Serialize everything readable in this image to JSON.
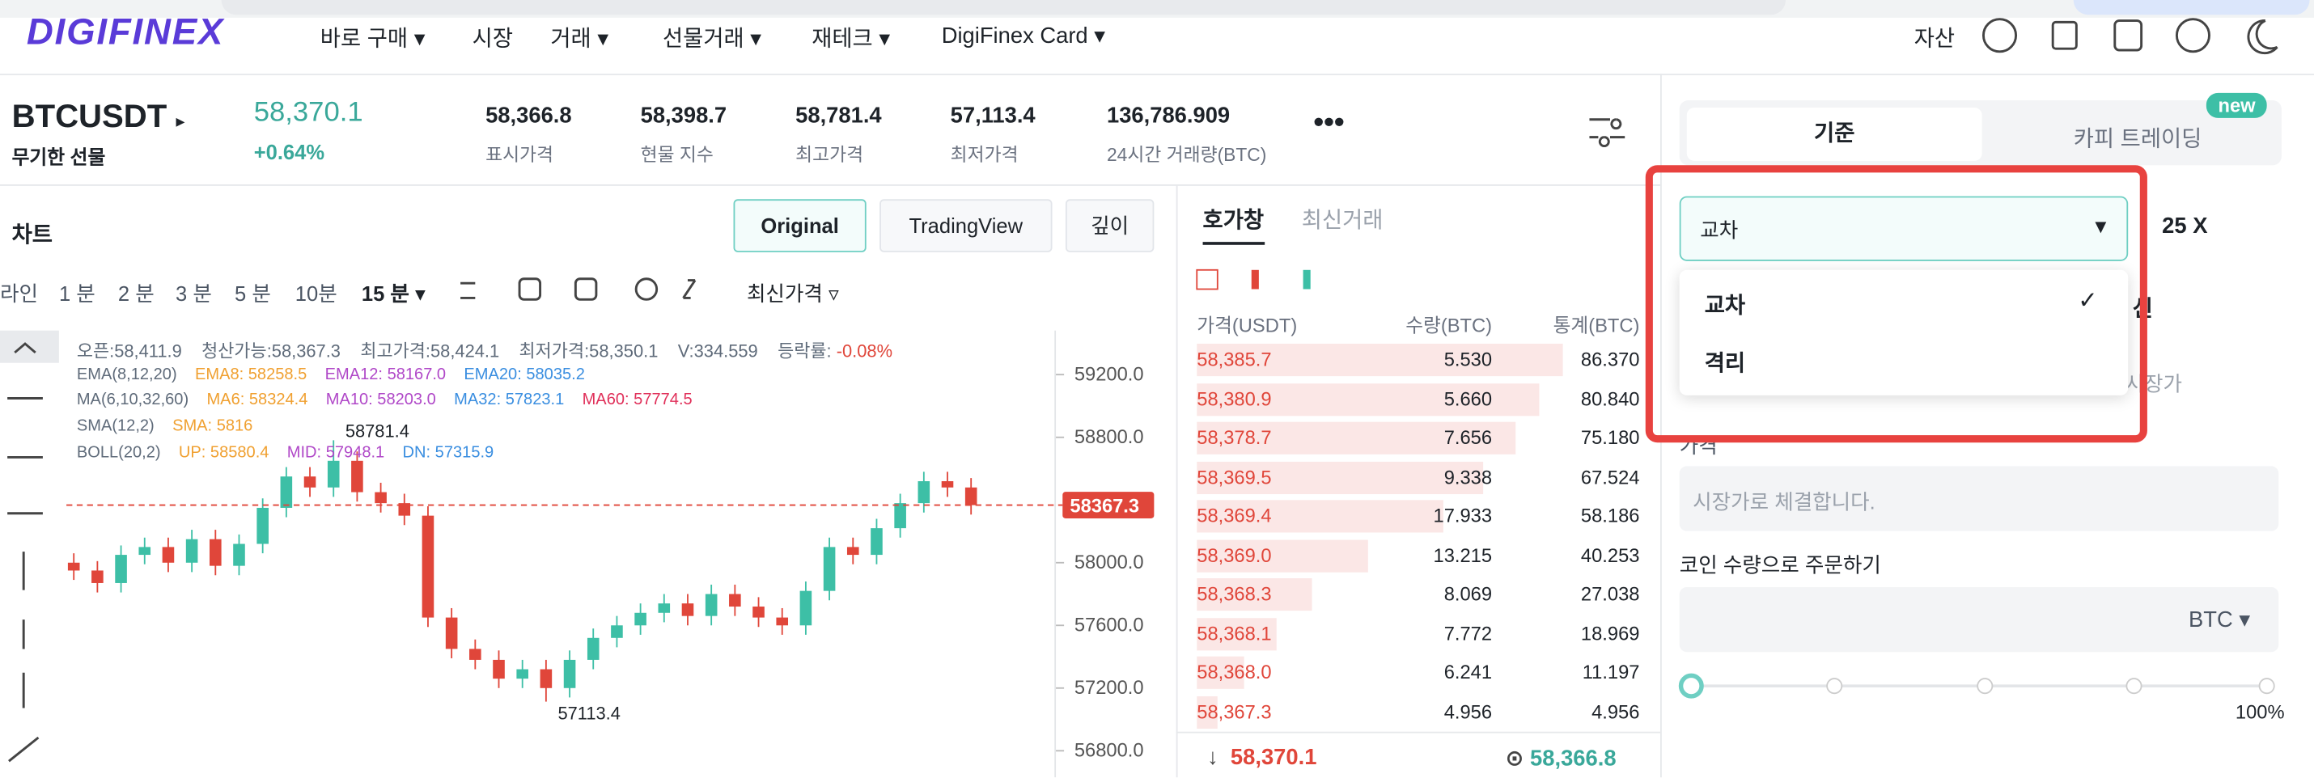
{
  "nav": {
    "logo": "DIGIFINEX",
    "menu": [
      "바로 구매",
      "시장",
      "거래",
      "선물거래",
      "재테크",
      "DigiFinex Card"
    ],
    "assets": "자산"
  },
  "ticker": {
    "symbol": "BTCUSDT",
    "contract": "무기한 선물",
    "price": "58,370.1",
    "change": "+0.64%",
    "stats": [
      {
        "value": "58,366.8",
        "label": "표시가격"
      },
      {
        "value": "58,398.7",
        "label": "현물 지수"
      },
      {
        "value": "58,781.4",
        "label": "최고가격"
      },
      {
        "value": "57,113.4",
        "label": "최저가격"
      },
      {
        "value": "136,786.909",
        "label": "24시간 거래량(BTC)"
      }
    ]
  },
  "chart_panel": {
    "title": "차트",
    "views": [
      "Original",
      "TradingView",
      "깊이"
    ],
    "intervals": [
      "라인",
      "1 분",
      "2 분",
      "3 분",
      "5 분",
      "10분",
      "15 분"
    ],
    "price_source": "최신가격",
    "info": [
      "오픈:58,411.9",
      "청산가능:58,367.3",
      "최고가격:58,424.1",
      "최저가격:58,350.1",
      "V:334.559",
      "등락률:",
      "-0.08%"
    ],
    "ema": [
      "EMA(8,12,20)",
      "EMA8: 58258.5",
      "EMA12: 58167.0",
      "EMA20: 58035.2"
    ],
    "ma": [
      "MA(6,10,32,60)",
      "MA6: 58324.4",
      "MA10: 58203.0",
      "MA32: 57823.1",
      "MA60: 57774.5"
    ],
    "sma": [
      "SMA(12,2)",
      "SMA: 5816"
    ],
    "boll": [
      "BOLL(20,2)",
      "UP: 58580.4",
      "MID: 57948.1",
      "DN: 57315.9"
    ]
  },
  "chart_data": {
    "type": "candlestick",
    "up_color": "#3dbfa6",
    "down_color": "#e0463a",
    "open": [
      58000,
      57950,
      57870,
      58050,
      58100,
      58000,
      58150,
      57980,
      58120,
      58350,
      58550,
      58480,
      58650,
      58450,
      58380,
      58300,
      57650,
      57450,
      57380,
      57260,
      57320,
      57200,
      57380,
      57520,
      57600,
      57680,
      57740,
      57660,
      57800,
      57720,
      57650,
      57600,
      57820,
      58100,
      58050,
      58220,
      58380,
      58520,
      58480
    ],
    "high": [
      58060,
      58010,
      58110,
      58160,
      58160,
      58210,
      58210,
      58180,
      58410,
      58610,
      58610,
      58781.4,
      58710,
      58510,
      58440,
      58360,
      57710,
      57510,
      57440,
      57380,
      57380,
      57440,
      57580,
      57660,
      57740,
      57800,
      57800,
      57860,
      57860,
      57780,
      57710,
      57880,
      58160,
      58160,
      58280,
      58440,
      58580,
      58580,
      58540
    ],
    "low": [
      57890,
      57810,
      57810,
      57990,
      57940,
      57940,
      57920,
      57920,
      58060,
      58290,
      58420,
      58420,
      58390,
      58320,
      58240,
      57590,
      57390,
      57320,
      57200,
      57200,
      57113.4,
      57140,
      57320,
      57460,
      57540,
      57620,
      57600,
      57600,
      57660,
      57590,
      57540,
      57540,
      57760,
      57990,
      57990,
      58160,
      58320,
      58420,
      58307
    ],
    "close": [
      57950,
      57870,
      58050,
      58100,
      58000,
      58150,
      57980,
      58120,
      58350,
      58550,
      58480,
      58650,
      58450,
      58380,
      58300,
      57650,
      57450,
      57380,
      57260,
      57320,
      57200,
      57380,
      57520,
      57600,
      57680,
      57740,
      57660,
      57800,
      57720,
      57650,
      57600,
      57820,
      58100,
      58050,
      58220,
      58380,
      58520,
      58480,
      58367.3
    ],
    "ylim": [
      56630,
      59482
    ],
    "yticks": [
      {
        "value": 56800,
        "label": "56800.0"
      },
      {
        "value": 57200,
        "label": "57200.0"
      },
      {
        "value": 57600,
        "label": "57600.0"
      },
      {
        "value": 58000,
        "label": "58000.0"
      },
      {
        "value": 58800,
        "label": "58800.0"
      },
      {
        "value": 59200,
        "label": "59200.0"
      }
    ],
    "high_mark": 58781.4,
    "low_mark": 57113.4,
    "last_price": 58367.3
  },
  "order_book": {
    "tabs": [
      "호가창",
      "최신거래"
    ],
    "headers": [
      "가격(USDT)",
      "수량(BTC)",
      "통계(BTC)"
    ],
    "rows": [
      [
        "58,385.7",
        "5.530",
        "86.370"
      ],
      [
        "58,380.9",
        "5.660",
        "80.840"
      ],
      [
        "58,378.7",
        "7.656",
        "75.180"
      ],
      [
        "58,369.5",
        "9.338",
        "67.524"
      ],
      [
        "58,369.4",
        "17.933",
        "58.186"
      ],
      [
        "58,369.0",
        "13.215",
        "40.253"
      ],
      [
        "58,368.3",
        "8.069",
        "27.038"
      ],
      [
        "58,368.1",
        "7.772",
        "18.969"
      ],
      [
        "58,368.0",
        "6.241",
        "11.197"
      ],
      [
        "58,367.3",
        "4.956",
        "4.956"
      ]
    ],
    "last": "58,370.1",
    "mark": "58,366.8"
  },
  "trade_panel": {
    "tabs": [
      "기준",
      "카피 트레이딩"
    ],
    "badge": "new",
    "margin_mode": "교차",
    "leverage": "25 X",
    "options": [
      "교차",
      "격리"
    ],
    "covered": [
      "신",
      "시장가"
    ],
    "price_label": "가격",
    "price_placeholder": "시장가로 체결합니다.",
    "amount_label": "코인 수량으로 주문하기",
    "unit": "BTC",
    "slider_max": "100%"
  }
}
